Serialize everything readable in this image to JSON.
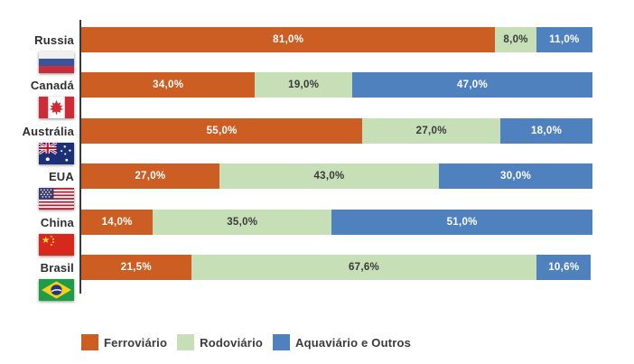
{
  "chart_data": {
    "type": "bar",
    "orientation": "horizontal",
    "stacked": true,
    "unit": "percent",
    "title": "",
    "xlabel": "",
    "ylabel": "",
    "xlim": [
      0,
      100
    ],
    "grid": false,
    "legend_position": "bottom",
    "categories": [
      "Russia",
      "Canadá",
      "Austrália",
      "EUA",
      "China",
      "Brasil"
    ],
    "series": [
      {
        "name": "Ferroviário",
        "key": "ferroviario",
        "color": "#CC5E24",
        "value_text_color": "#FFFFFF",
        "values": [
          81.0,
          34.0,
          55.0,
          27.0,
          14.0,
          21.5
        ],
        "value_labels": [
          "81,0%",
          "34,0%",
          "55,0%",
          "27,0%",
          "14,0%",
          "21,5%"
        ]
      },
      {
        "name": "Rodoviário",
        "key": "rodoviario",
        "color": "#C7DFB7",
        "value_text_color": "#3A3A3A",
        "values": [
          8.0,
          19.0,
          27.0,
          43.0,
          35.0,
          67.6
        ],
        "value_labels": [
          "8,0%",
          "19,0%",
          "27,0%",
          "43,0%",
          "35,0%",
          "67,6%"
        ]
      },
      {
        "name": "Aquaviário e Outros",
        "key": "aquaviario-e-outros",
        "color": "#4E81BE",
        "value_text_color": "#FFFFFF",
        "values": [
          11.0,
          47.0,
          18.0,
          30.0,
          51.0,
          10.6
        ],
        "value_labels": [
          "11,0%",
          "47,0%",
          "18,0%",
          "30,0%",
          "51,0%",
          "10,6%"
        ]
      }
    ],
    "flags": [
      "russia-flag",
      "canada-flag",
      "australia-flag",
      "usa-flag",
      "china-flag",
      "brazil-flag"
    ]
  },
  "colors": {
    "background": "#FFFFFF",
    "axis_line": "#3A3A3A",
    "category_label": "#2E2E2E",
    "legend_label": "#3A3A3A"
  }
}
